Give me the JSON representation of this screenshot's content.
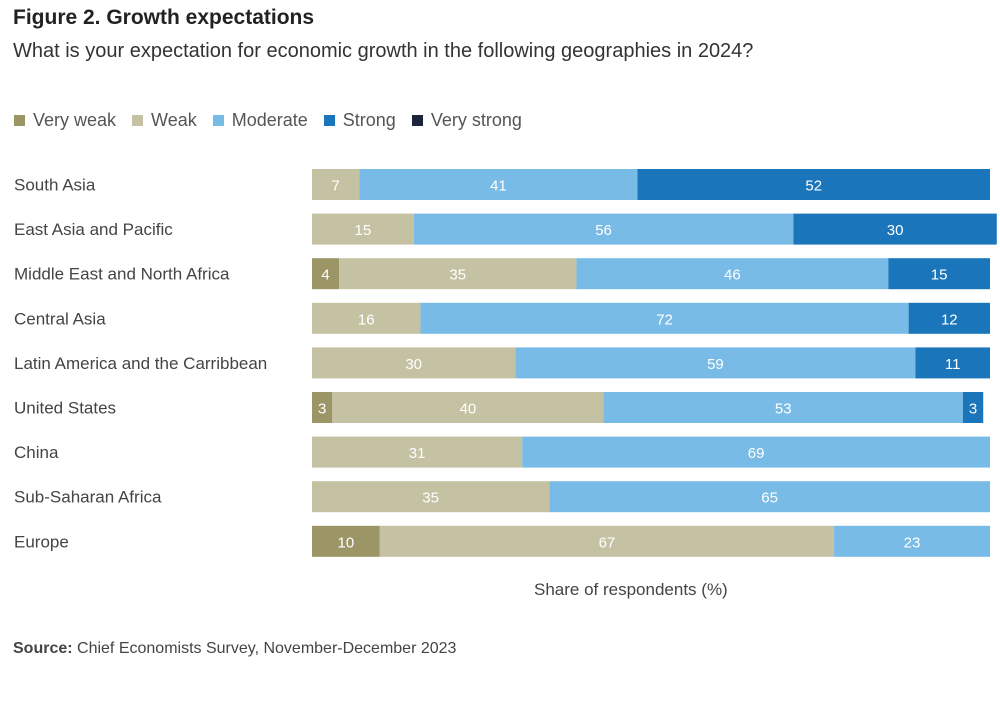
{
  "chart_data": {
    "type": "bar",
    "orientation": "horizontal",
    "stacked": true,
    "title": "Figure 2. Growth expectations",
    "subtitle": "What is your expectation for economic growth in the following geographies in 2024?",
    "xlabel": "Share of respondents (%)",
    "xlim": [
      0,
      100
    ],
    "grid": false,
    "legend_position": "top-left",
    "categories": [
      "South Asia",
      "East Asia and Pacific",
      "Middle East and North Africa",
      "Central Asia",
      "Latin America and the Carribbean",
      "United States",
      "China",
      "Sub-Saharan Africa",
      "Europe"
    ],
    "series": [
      {
        "name": "Very weak",
        "color": "#9c9565",
        "values": [
          0,
          0,
          4,
          0,
          0,
          3,
          0,
          0,
          10
        ]
      },
      {
        "name": "Weak",
        "color": "#c5c2a4",
        "values": [
          7,
          15,
          35,
          16,
          30,
          40,
          31,
          35,
          67
        ]
      },
      {
        "name": "Moderate",
        "color": "#78bbe6",
        "values": [
          41,
          56,
          46,
          72,
          59,
          53,
          69,
          65,
          23
        ]
      },
      {
        "name": "Strong",
        "color": "#1a75bb",
        "values": [
          52,
          30,
          15,
          12,
          11,
          3,
          0,
          0,
          0
        ]
      },
      {
        "name": "Very strong",
        "color": "#1b2438",
        "values": [
          0,
          0,
          0,
          0,
          0,
          0,
          0,
          0,
          0
        ]
      }
    ]
  },
  "source": {
    "label": "Source:",
    "text": " Chief Economists Survey, November-December 2023"
  }
}
